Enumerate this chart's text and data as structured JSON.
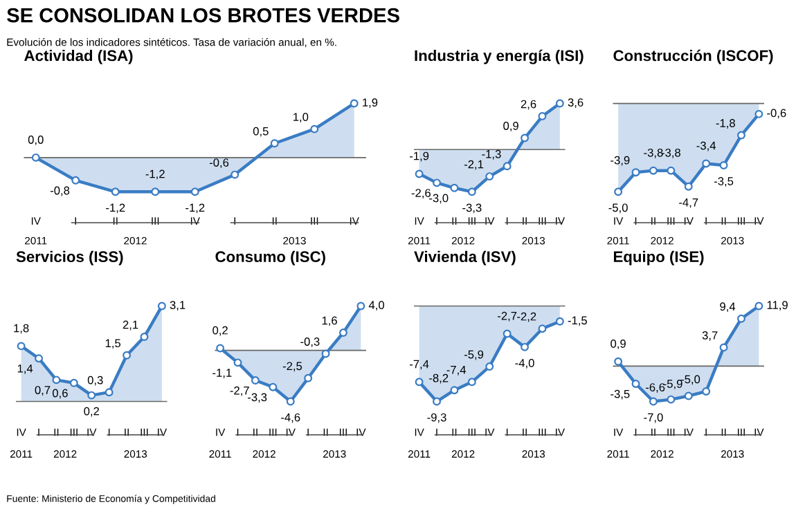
{
  "chart_data": [
    {
      "type": "other",
      "title": "SE CONSOLIDAN LOS BROTES VERDES",
      "subtitle": "Evolución de los indicadores sintéticos. Tasa de variación anual, en %.",
      "annotations": [
        "Fuente: Ministerio de Economía y Competitividad"
      ]
    },
    {
      "type": "area",
      "title": "Actividad (ISA)",
      "categories": [
        "IV",
        "I",
        "II",
        "III",
        "IV",
        "I",
        "II",
        "III",
        "IV"
      ],
      "annotations": [
        "2011",
        "2012",
        "2013"
      ],
      "marker": "circle",
      "tick_labels": "x",
      "series": [
        {
          "color": "#3a7cc4",
          "values": [
            0.0,
            -0.8,
            -1.2,
            -1.2,
            -1.2,
            -0.6,
            0.5,
            1.0,
            1.9
          ],
          "value_labels": [
            "0,0",
            "-0,8",
            "-1,2",
            "-1,2",
            "-1,2",
            "-0,6",
            "0,5",
            "1,0",
            "1,9"
          ]
        }
      ]
    },
    {
      "type": "area",
      "title": "Industria y energía (ISI)",
      "categories": [
        "IV",
        "I",
        "II",
        "III",
        "IV",
        "I",
        "II",
        "III",
        "IV"
      ],
      "annotations": [
        "2011",
        "2012",
        "2013"
      ],
      "marker": "circle",
      "tick_labels": "x",
      "series": [
        {
          "color": "#3a7cc4",
          "values": [
            -1.9,
            -2.6,
            -3.0,
            -3.3,
            -2.1,
            -1.3,
            0.9,
            2.6,
            3.6
          ],
          "value_labels": [
            "-1,9",
            "-2,6",
            "-3,0",
            "-3,3",
            "-2,1",
            "-1,3",
            "0,9",
            "2,6",
            "3,6"
          ]
        }
      ]
    },
    {
      "type": "area",
      "title": "Construcción (ISCOF)",
      "categories": [
        "IV",
        "I",
        "II",
        "III",
        "IV",
        "I",
        "II",
        "III",
        "IV"
      ],
      "annotations": [
        "2011",
        "2012",
        "2013"
      ],
      "marker": "circle",
      "tick_labels": "x",
      "series": [
        {
          "color": "#3a7cc4",
          "values": [
            -5.0,
            -3.9,
            -3.8,
            -3.8,
            -4.7,
            -3.4,
            -3.5,
            -1.8,
            -0.6
          ],
          "value_labels": [
            "-5,0",
            "-3,9",
            "-3,8",
            "-3,8",
            "-4,7",
            "-3,4",
            "-3,5",
            "-1,8",
            "-0,6"
          ]
        }
      ]
    },
    {
      "type": "area",
      "title": "Servicios (ISS)",
      "categories": [
        "IV",
        "I",
        "II",
        "III",
        "IV",
        "I",
        "II",
        "III",
        "IV"
      ],
      "annotations": [
        "2011",
        "2012",
        "2013"
      ],
      "marker": "circle",
      "tick_labels": "x",
      "series": [
        {
          "color": "#3a7cc4",
          "values": [
            1.8,
            1.4,
            0.7,
            0.6,
            0.2,
            0.3,
            1.5,
            2.1,
            3.1
          ],
          "value_labels": [
            "1,8",
            "1,4",
            "0,7",
            "0,6",
            "0,2",
            "0,3",
            "1,5",
            "2,1",
            "3,1"
          ]
        }
      ]
    },
    {
      "type": "area",
      "title": "Consumo (ISC)",
      "categories": [
        "IV",
        "I",
        "II",
        "III",
        "IV",
        "I",
        "II",
        "III",
        "IV"
      ],
      "annotations": [
        "2011",
        "2012",
        "2013"
      ],
      "marker": "circle",
      "tick_labels": "x",
      "series": [
        {
          "color": "#3a7cc4",
          "values": [
            0.2,
            -1.1,
            -2.7,
            -3.3,
            -4.6,
            -2.5,
            -0.3,
            1.6,
            4.0
          ],
          "value_labels": [
            "0,2",
            "-1,1",
            "-2,7",
            "-3,3",
            "-4,6",
            "-2,5",
            "-0,3",
            "1,6",
            "4,0"
          ]
        }
      ]
    },
    {
      "type": "area",
      "title": "Vivienda (ISV)",
      "categories": [
        "IV",
        "I",
        "II",
        "III",
        "IV",
        "I",
        "II",
        "III",
        "IV"
      ],
      "annotations": [
        "2011",
        "2012",
        "2013"
      ],
      "marker": "circle",
      "tick_labels": "x",
      "series": [
        {
          "color": "#3a7cc4",
          "values": [
            -7.4,
            -9.3,
            -8.2,
            -7.4,
            -5.9,
            -2.7,
            -4.0,
            -2.2,
            -1.5
          ],
          "value_labels": [
            "-7,4",
            "-9,3",
            "-8,2",
            "-7,4",
            "-5,9",
            "-2,7",
            "-4,0",
            "-2,2",
            "-1,5"
          ]
        }
      ]
    },
    {
      "type": "area",
      "title": "Equipo (ISE)",
      "categories": [
        "IV",
        "I",
        "II",
        "III",
        "IV",
        "I",
        "II",
        "III",
        "IV"
      ],
      "annotations": [
        "2011",
        "2012",
        "2013"
      ],
      "marker": "circle",
      "tick_labels": "x",
      "series": [
        {
          "color": "#3a7cc4",
          "values": [
            0.9,
            -3.5,
            -7.0,
            -6.6,
            -5.9,
            -5.0,
            3.7,
            9.4,
            11.9
          ],
          "value_labels": [
            "0,9",
            "-3,5",
            "-7,0",
            "-6,6",
            "-5,9",
            "-5,0",
            "3,7",
            "9,4",
            "11,9"
          ]
        }
      ]
    }
  ]
}
